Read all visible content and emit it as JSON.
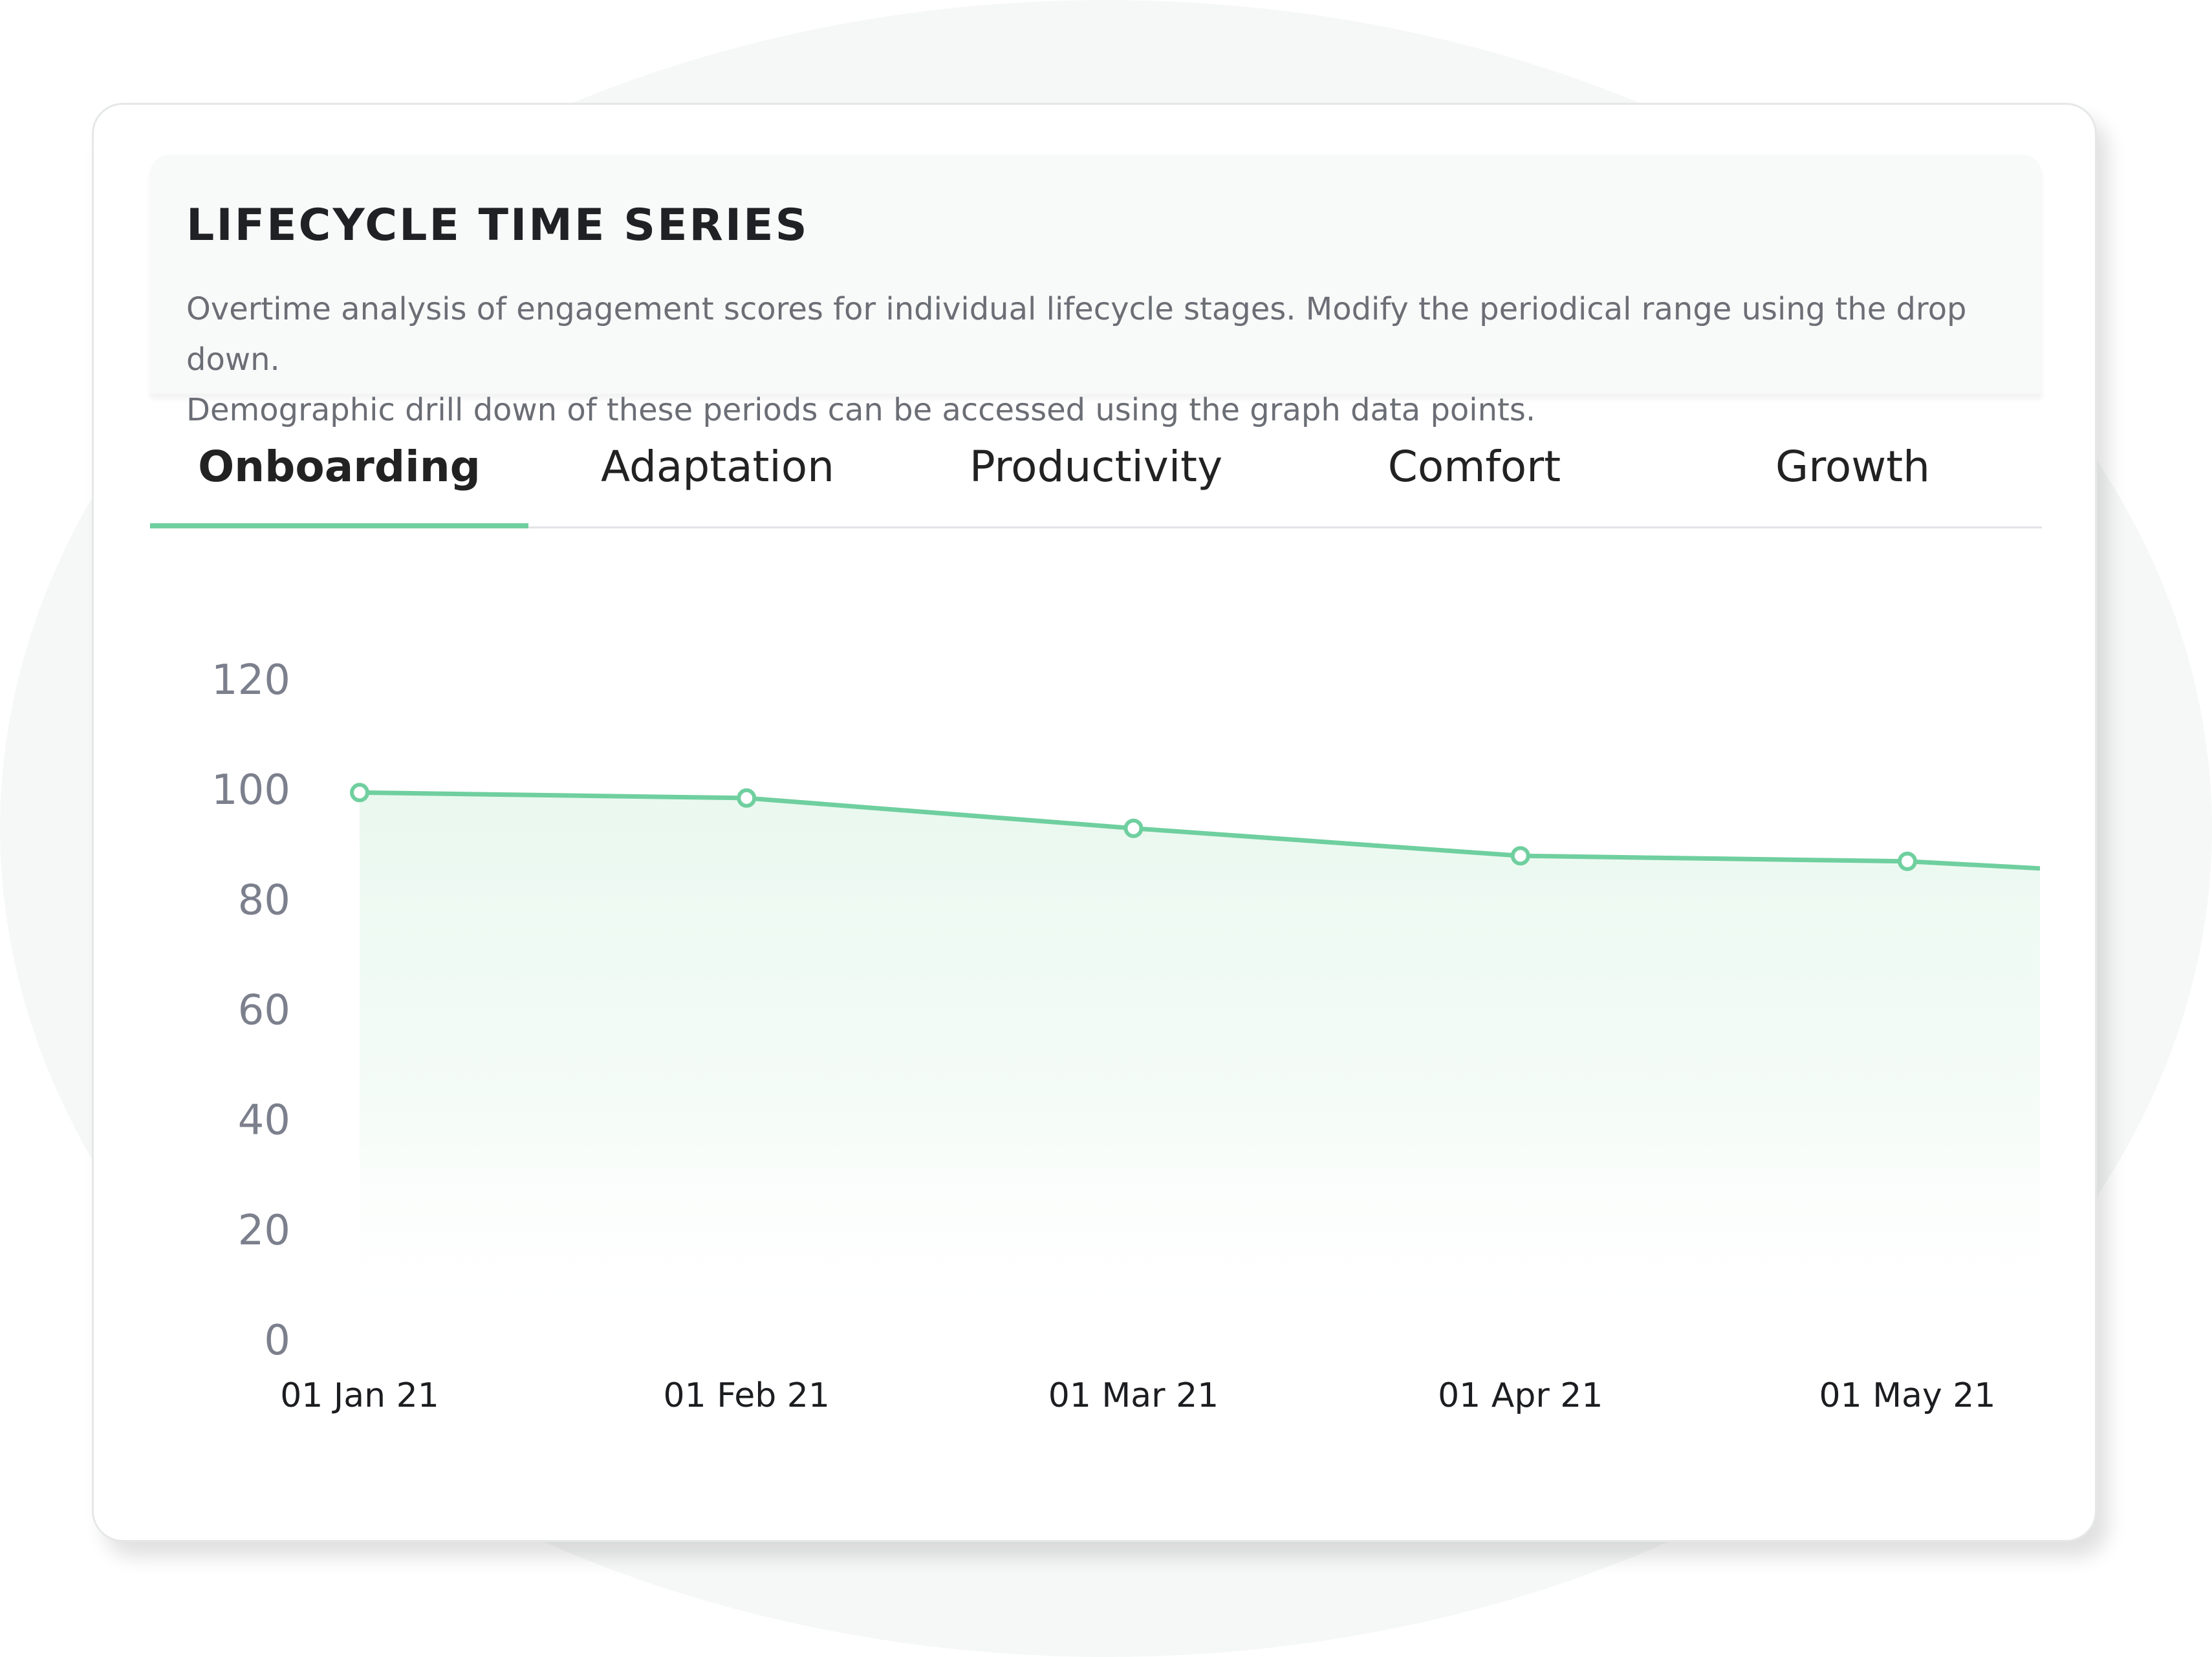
{
  "card": {
    "title": "LIFECYCLE TIME SERIES",
    "description_lines": [
      "Overtime analysis of engagement scores for individual lifecycle stages. Modify the periodical range using the drop down.",
      "Demographic drill down of these periods can be accessed using the graph data points."
    ]
  },
  "tabs": [
    {
      "label": "Onboarding",
      "active": true
    },
    {
      "label": "Adaptation",
      "active": false
    },
    {
      "label": "Productivity",
      "active": false
    },
    {
      "label": "Comfort",
      "active": false
    },
    {
      "label": "Growth",
      "active": false
    }
  ],
  "colors": {
    "accent": "#6fcf9f",
    "axis_text": "#7c808d"
  },
  "chart_data": {
    "type": "area",
    "x": [
      "01 Jan 21",
      "01 Feb 21",
      "01 Mar 21",
      "01 Apr 21",
      "01 May 21"
    ],
    "series": [
      {
        "values": [
          99.5,
          98.5,
          93,
          88,
          87
        ]
      }
    ],
    "yticks": [
      0,
      20,
      40,
      60,
      80,
      100,
      120
    ],
    "ylim": [
      0,
      120
    ],
    "grid": false,
    "legend": "none",
    "title": "",
    "xlabel": "",
    "ylabel": ""
  }
}
